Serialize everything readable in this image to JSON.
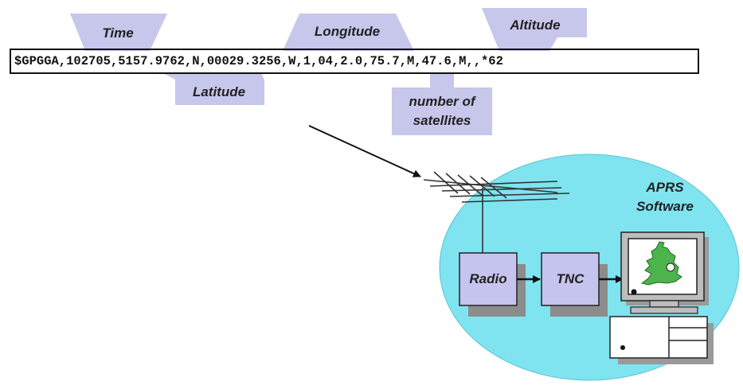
{
  "nmea_sentence": "$GPGGA,102705,5157.9762,N,00029.3256,W,1,04,2.0,75.7,M,47.6,M,,*62",
  "field_labels": {
    "time": "Time",
    "latitude": "Latitude",
    "longitude": "Longitude",
    "altitude": "Altitude",
    "satellites_line1": "number of",
    "satellites_line2": "satellites"
  },
  "software": {
    "line1": "APRS",
    "line2": "Software"
  },
  "boxes": {
    "radio": "Radio",
    "tnc": "TNC"
  },
  "colors": {
    "label_fill": "#c7c6eb",
    "ellipse_fill": "#7fe3f0",
    "box_fill": "#c5c4ee",
    "shadow": "#8c8c8c",
    "computer_gray": "#bdbdbd",
    "map_green": "#4db34d"
  }
}
